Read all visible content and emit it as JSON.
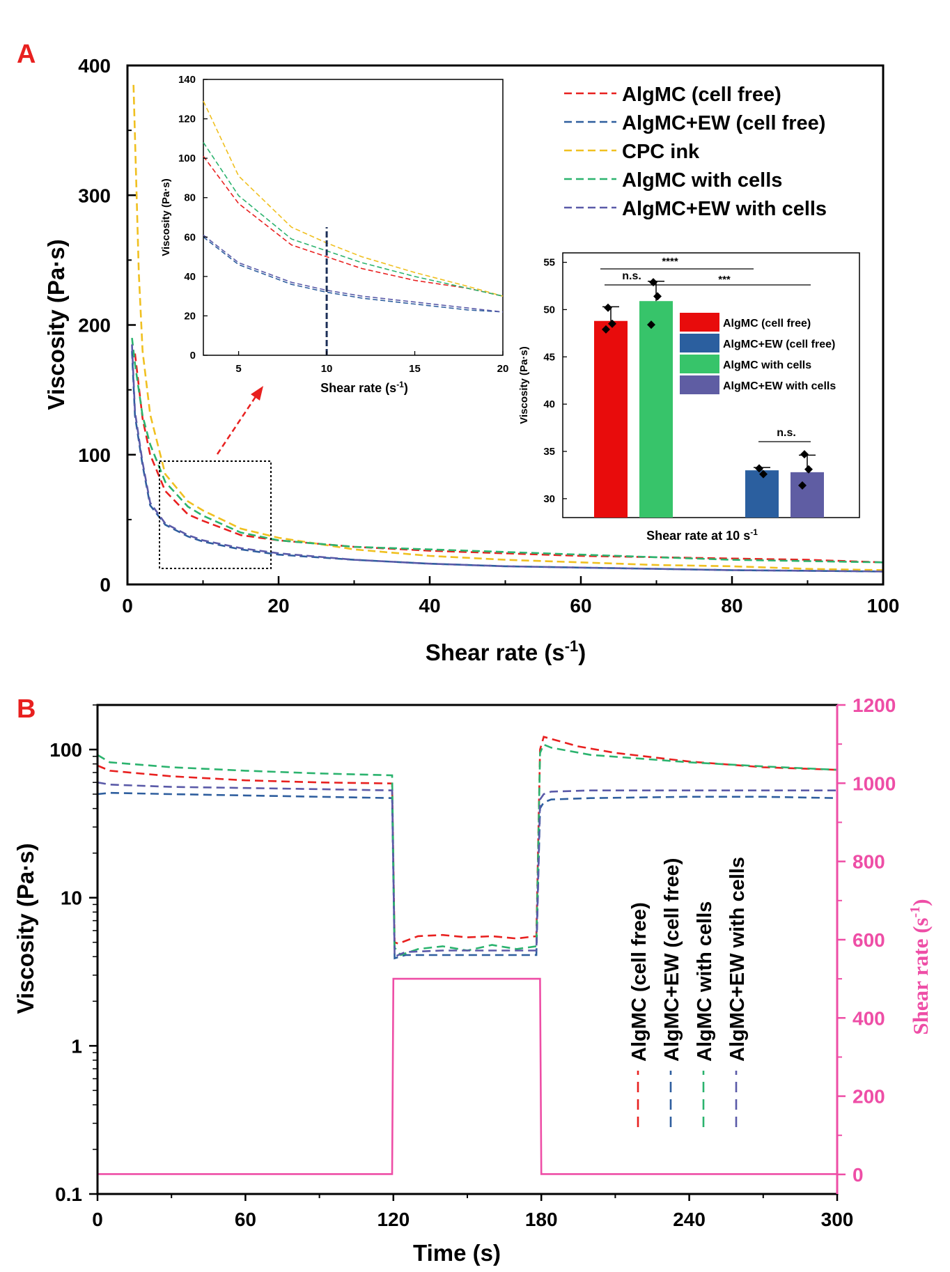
{
  "panels": {
    "a": {
      "label": "A",
      "chart_data": {
        "type": "line",
        "xlabel": "Shear rate (s",
        "xlabel_sup": "-1",
        "xlabel_close": ")",
        "ylabel": "Viscosity (Pa·s)",
        "xlim": [
          0,
          100
        ],
        "ylim": [
          0,
          400
        ],
        "xticks": [
          "0",
          "20",
          "40",
          "60",
          "80",
          "100"
        ],
        "yticks": [
          "0",
          "100",
          "200",
          "300",
          "400"
        ],
        "legend": "top-right",
        "series": [
          {
            "name": "AlgMC (cell free)",
            "color": "#e8201f",
            "x": [
              1,
              2,
              3,
              5,
              8,
              10,
              15,
              20,
              30,
              40,
              50,
              60,
              70,
              80,
              90,
              100
            ],
            "y": [
              178,
              128,
              100,
              72,
              54,
              49,
              38,
              34,
              29,
              26,
              24,
              22,
              21,
              20,
              19,
              17
            ]
          },
          {
            "name": "AlgMC+EW (cell free)",
            "color": "#2e5e9e",
            "x": [
              0.6,
              1,
              2,
              3,
              5,
              8,
              10,
              15,
              20,
              30,
              40,
              50,
              60,
              70,
              80,
              90,
              100
            ],
            "y": [
              180,
              130,
              92,
              61,
              46,
              37,
              33,
              27,
              23,
              19,
              16,
              14,
              13,
              12,
              11,
              10.5,
              10
            ]
          },
          {
            "name": "CPC ink",
            "color": "#f0c020",
            "x": [
              0.8,
              1.5,
              2,
              3,
              5,
              8,
              10,
              15,
              20,
              30,
              40,
              50,
              60,
              70,
              80,
              90,
              100
            ],
            "y": [
              385,
              240,
              180,
              131,
              85,
              64,
              57,
              43,
              36,
              27,
              22,
              19,
              17,
              15,
              14,
              12,
              11
            ]
          },
          {
            "name": "AlgMC with cells",
            "color": "#2bb36e",
            "x": [
              0.6,
              1,
              2,
              3,
              5,
              8,
              10,
              15,
              20,
              30,
              40,
              50,
              60,
              70,
              80,
              90,
              100
            ],
            "y": [
              190,
              170,
              130,
              108,
              79,
              60,
              53,
              40,
              34,
              29,
              27,
              25,
              23,
              21,
              19,
              18,
              17
            ]
          },
          {
            "name": "AlgMC+EW with cells",
            "color": "#5a5aa8",
            "x": [
              0.6,
              1,
              2,
              3,
              5,
              8,
              10,
              15,
              20,
              30,
              40,
              50,
              60,
              70,
              80,
              90,
              100
            ],
            "y": [
              185,
              133,
              94,
              63,
              47,
              38,
              34,
              28,
              24,
              19,
              16,
              14,
              13,
              12,
              11,
              10.5,
              10
            ]
          }
        ]
      },
      "inset_line": {
        "type": "line",
        "xlabel": "Shear rate (s",
        "xlabel_sup": "-1",
        "xlabel_close": ")",
        "ylabel": "Viscosity (Pa·s)",
        "xlim": [
          3,
          20
        ],
        "ylim": [
          0,
          140
        ],
        "xticks": [
          "5",
          "10",
          "15",
          "20"
        ],
        "yticks": [
          "0",
          "20",
          "40",
          "60",
          "80",
          "100",
          "120",
          "140"
        ],
        "marker_x": 10,
        "series": [
          {
            "name": "AlgMC (cell free)",
            "color": "#e8201f",
            "x": [
              3,
              5,
              8,
              10,
              12,
              15,
              18,
              20
            ],
            "y": [
              101,
              77,
              56,
              50,
              44,
              38,
              34,
              30
            ]
          },
          {
            "name": "AlgMC+EW (cell free)",
            "color": "#2e5e9e",
            "x": [
              3,
              5,
              8,
              10,
              12,
              15,
              18,
              20
            ],
            "y": [
              60,
              46,
              36,
              32,
              29,
              26,
              23,
              22
            ]
          },
          {
            "name": "CPC ink",
            "color": "#f0c020",
            "x": [
              3,
              5,
              8,
              10,
              12,
              15,
              18,
              20
            ],
            "y": [
              129,
              91,
              65,
              57,
              50,
              42,
              35,
              30
            ]
          },
          {
            "name": "AlgMC with cells",
            "color": "#2bb36e",
            "x": [
              3,
              5,
              8,
              10,
              12,
              15,
              18,
              20
            ],
            "y": [
              108,
              81,
              59,
              53,
              47,
              40,
              34,
              30
            ]
          },
          {
            "name": "AlgMC+EW with cells",
            "color": "#5a5aa8",
            "x": [
              3,
              5,
              8,
              10,
              12,
              15,
              18,
              20
            ],
            "y": [
              61,
              47,
              37,
              33,
              30,
              27,
              24,
              22
            ]
          }
        ]
      },
      "inset_bar": {
        "type": "bar",
        "xlabel": "Shear rate at 10 s",
        "xlabel_sup": "-1",
        "ylabel": "Viscosity (Pa·s)",
        "ylim": [
          28,
          56
        ],
        "yticks": [
          "30",
          "35",
          "40",
          "45",
          "50",
          "55"
        ],
        "bars": [
          {
            "name": "AlgMC (cell free)",
            "color": "#e80c0c",
            "value": 48.8,
            "err": 1.5,
            "points": [
              50.2,
              48.5,
              47.9
            ]
          },
          {
            "name": "AlgMC with cells",
            "color": "#37c46a",
            "value": 50.9,
            "err": 2.1,
            "points": [
              52.9,
              51.4,
              48.4
            ]
          },
          {
            "name": "AlgMC+EW (cell free)",
            "color": "#2b5f9f",
            "value": 33.0,
            "err": 0.3,
            "points": [
              33.2,
              32.6
            ]
          },
          {
            "name": "AlgMC+EW with cells",
            "color": "#5f5da3",
            "value": 32.8,
            "err": 1.8,
            "points": [
              34.7,
              33.1,
              31.4
            ]
          }
        ],
        "legend": [
          "AlgMC (cell free)",
          "AlgMC+EW (cell free)",
          "AlgMC with cells",
          "AlgMC+EW with cells"
        ],
        "sig": {
          "top": "****",
          "mid": "***",
          "left": "n.s.",
          "right": "n.s."
        }
      }
    },
    "b": {
      "label": "B",
      "chart_data": {
        "type": "line",
        "xlabel": "Time (s)",
        "ylabel": "Viscosity (Pa·s)",
        "y2label": "Shear rate (s",
        "y2label_sup": "-1",
        "y2label_close": ")",
        "xlim": [
          0,
          300
        ],
        "ylim": [
          0.1,
          200
        ],
        "ylog": true,
        "y2lim": [
          -50,
          1200
        ],
        "xticks": [
          "0",
          "60",
          "120",
          "180",
          "240",
          "300"
        ],
        "yticks": [
          "0.1",
          "1",
          "10",
          "100"
        ],
        "y2ticks": [
          "0",
          "200",
          "400",
          "600",
          "800",
          "1000",
          "1200"
        ],
        "y2color": "#ee4ea6",
        "legend": "right",
        "series": [
          {
            "name": "AlgMC (cell free)",
            "color": "#e8201f",
            "x": [
              0,
              5,
              30,
              60,
              90,
              119.5,
              120.5,
              122,
              130,
              140,
              150,
              160,
              170,
              178,
              179.5,
              181,
              184,
              195,
              210,
              240,
              270,
              300
            ],
            "y": [
              78,
              72,
              66,
              62,
              60,
              59,
              5.0,
              4.9,
              5.5,
              5.6,
              5.4,
              5.5,
              5.3,
              5.5,
              100,
              122,
              118,
              105,
              95,
              83,
              76,
              73
            ]
          },
          {
            "name": "AlgMC+EW (cell free)",
            "color": "#2e5e9e",
            "x": [
              0,
              5,
              30,
              60,
              90,
              119.5,
              120.5,
              125,
              140,
              160,
              178,
              179.5,
              181,
              184,
              200,
              240,
              270,
              300
            ],
            "y": [
              50,
              51,
              50,
              49,
              48,
              47,
              3.9,
              4.1,
              4.1,
              4.1,
              4.1,
              40,
              44,
              46,
              47,
              48,
              48,
              47
            ]
          },
          {
            "name": "AlgMC with cells",
            "color": "#2bb36e",
            "x": [
              0,
              5,
              30,
              60,
              90,
              119.5,
              120.5,
              123,
              130,
              140,
              150,
              160,
              170,
              178,
              179.5,
              181,
              184,
              200,
              240,
              270,
              300
            ],
            "y": [
              92,
              82,
              76,
              72,
              69,
              67,
              4.6,
              4.1,
              4.5,
              4.7,
              4.4,
              4.8,
              4.5,
              4.7,
              95,
              108,
              103,
              92,
              82,
              77,
              73
            ]
          },
          {
            "name": "AlgMC+EW with cells",
            "color": "#5a5aa8",
            "x": [
              0,
              5,
              30,
              60,
              90,
              119.5,
              120.5,
              125,
              140,
              160,
              178,
              179.5,
              181,
              184,
              200,
              240,
              270,
              300
            ],
            "y": [
              60,
              58,
              56,
              55,
              54,
              53,
              4.0,
              4.3,
              4.4,
              4.4,
              4.4,
              46,
              50,
              52,
              53,
              53,
              53,
              53
            ]
          }
        ],
        "shear_rate": {
          "name": "Shear rate",
          "color": "#ee4ea6",
          "x": [
            0,
            119.5,
            120,
            179.5,
            180,
            300
          ],
          "y": [
            1,
            1,
            500,
            500,
            1,
            1
          ]
        }
      }
    }
  }
}
